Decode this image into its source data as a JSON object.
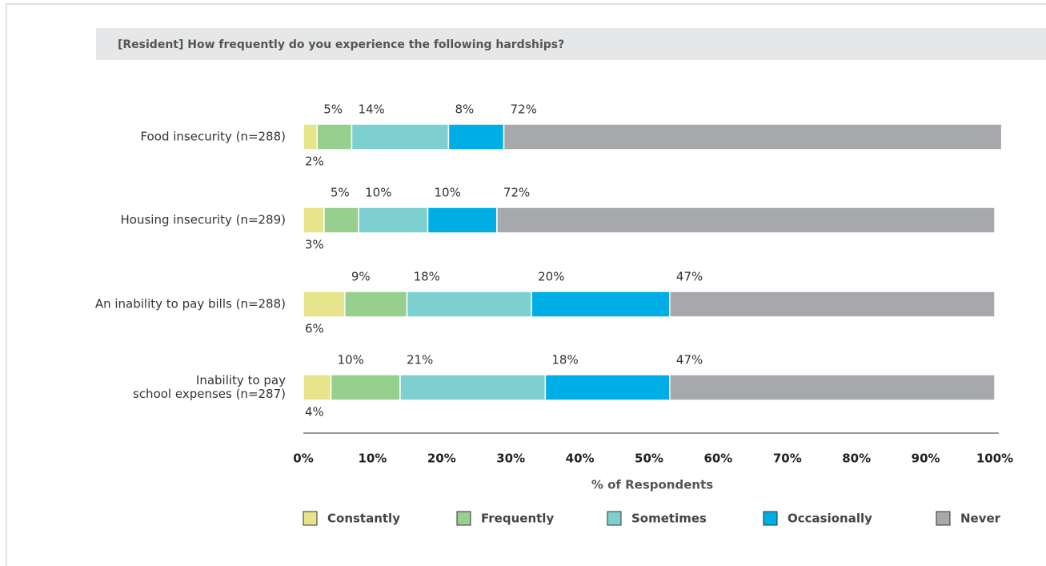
{
  "chart_data": {
    "type": "stacked_bar_horizontal",
    "title": "[Resident] How frequently do you experience the following hardships?",
    "categories": [
      "Food insecurity (n=288)",
      "Housing insecurity (n=289)",
      "An inability to pay bills (n=288)",
      "Inability to pay\nschool expenses (n=287)"
    ],
    "series": [
      {
        "name": "Constantly",
        "color": "#e6e58c",
        "values": [
          2,
          3,
          6,
          4
        ],
        "value_labels": [
          "2%",
          "3%",
          "6%",
          "4%"
        ]
      },
      {
        "name": "Frequently",
        "color": "#97cf8e",
        "values": [
          5,
          5,
          9,
          10
        ],
        "value_labels": [
          "5%",
          "5%",
          "9%",
          "10%"
        ]
      },
      {
        "name": "Sometimes",
        "color": "#7ecfd0",
        "values": [
          14,
          10,
          18,
          21
        ],
        "value_labels": [
          "14%",
          "10%",
          "18%",
          "21%"
        ]
      },
      {
        "name": "Occasionally",
        "color": "#00aee6",
        "values": [
          8,
          10,
          20,
          18
        ],
        "value_labels": [
          "8%",
          "10%",
          "20%",
          "18%"
        ]
      },
      {
        "name": "Never",
        "color": "#a7a8ab",
        "values": [
          72,
          72,
          47,
          47
        ],
        "value_labels": [
          "72%",
          "72%",
          "47%",
          "47%"
        ]
      }
    ],
    "xlabel": "% of Respondents",
    "xlim": [
      0,
      100
    ],
    "xticks": [
      {
        "value": 0,
        "label": "0%"
      },
      {
        "value": 10,
        "label": "10%"
      },
      {
        "value": 20,
        "label": "20%"
      },
      {
        "value": 30,
        "label": "30%"
      },
      {
        "value": 40,
        "label": "40%"
      },
      {
        "value": 50,
        "label": "50%"
      },
      {
        "value": 60,
        "label": "60%"
      },
      {
        "value": 70,
        "label": "70%"
      },
      {
        "value": 80,
        "label": "80%"
      },
      {
        "value": 90,
        "label": "90%"
      },
      {
        "value": 100,
        "label": "100%"
      }
    ],
    "legend": "bottom"
  }
}
